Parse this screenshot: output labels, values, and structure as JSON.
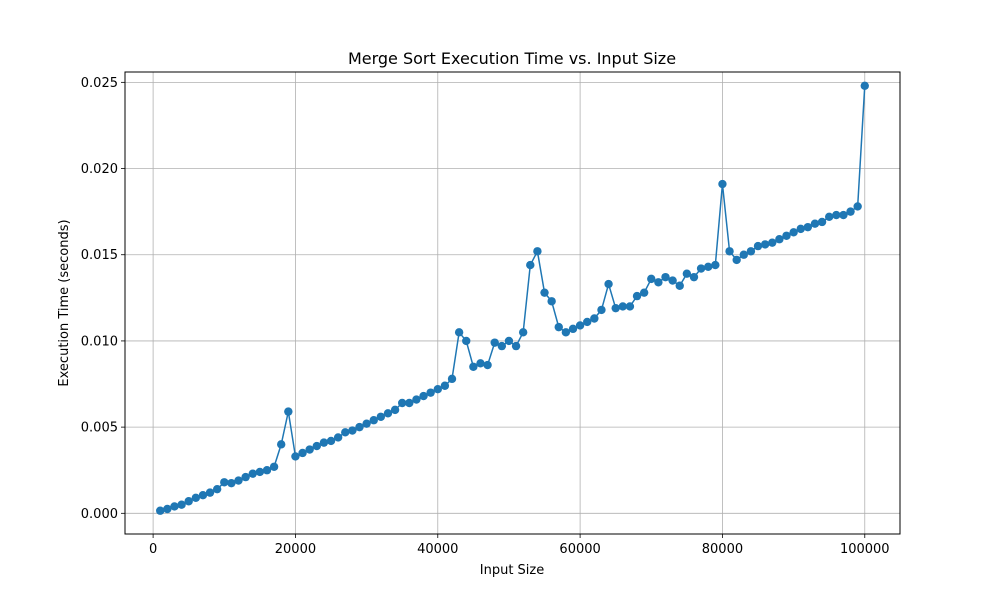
{
  "chart_data": {
    "type": "line",
    "title": "Merge Sort Execution Time vs. Input Size",
    "xlabel": "Input Size",
    "ylabel": "Execution Time (seconds)",
    "xlim": [
      -3950,
      104950
    ],
    "ylim": [
      -0.0012,
      0.0256
    ],
    "xticks": [
      0,
      20000,
      40000,
      60000,
      80000,
      100000
    ],
    "xtick_labels": [
      "0",
      "20000",
      "40000",
      "60000",
      "80000",
      "100000"
    ],
    "yticks": [
      0.0,
      0.005,
      0.01,
      0.015,
      0.02,
      0.025
    ],
    "ytick_labels": [
      "0.000",
      "0.005",
      "0.010",
      "0.015",
      "0.020",
      "0.025"
    ],
    "grid": true,
    "markers": "circle",
    "color": "#1f77b4",
    "series": [
      {
        "x": [
          1000,
          2000,
          3000,
          4000,
          5000,
          6000,
          7000,
          8000,
          9000,
          10000,
          11000,
          12000,
          13000,
          14000,
          15000,
          16000,
          17000,
          18000,
          19000,
          20000,
          21000,
          22000,
          23000,
          24000,
          25000,
          26000,
          27000,
          28000,
          29000,
          30000,
          31000,
          32000,
          33000,
          34000,
          35000,
          36000,
          37000,
          38000,
          39000,
          40000,
          41000,
          42000,
          43000,
          44000,
          45000,
          46000,
          47000,
          48000,
          49000,
          50000,
          51000,
          52000,
          53000,
          54000,
          55000,
          56000,
          57000,
          58000,
          59000,
          60000,
          61000,
          62000,
          63000,
          64000,
          65000,
          66000,
          67000,
          68000,
          69000,
          70000,
          71000,
          72000,
          73000,
          74000,
          75000,
          76000,
          77000,
          78000,
          79000,
          80000,
          81000,
          82000,
          83000,
          84000,
          85000,
          86000,
          87000,
          88000,
          89000,
          90000,
          91000,
          92000,
          93000,
          94000,
          95000,
          96000,
          97000,
          98000,
          99000,
          100000
        ],
        "y": [
          0.00015,
          0.00025,
          0.0004,
          0.0005,
          0.0007,
          0.0009,
          0.00105,
          0.0012,
          0.0014,
          0.0018,
          0.00175,
          0.0019,
          0.0021,
          0.0023,
          0.0024,
          0.0025,
          0.0027,
          0.004,
          0.0059,
          0.0033,
          0.0035,
          0.0037,
          0.0039,
          0.0041,
          0.0042,
          0.0044,
          0.0047,
          0.0048,
          0.005,
          0.0052,
          0.0054,
          0.0056,
          0.0058,
          0.006,
          0.0064,
          0.0064,
          0.0066,
          0.0068,
          0.007,
          0.0072,
          0.0074,
          0.0078,
          0.0105,
          0.01,
          0.0085,
          0.0087,
          0.0086,
          0.0099,
          0.0097,
          0.01,
          0.0097,
          0.0105,
          0.0144,
          0.0152,
          0.0128,
          0.0123,
          0.0108,
          0.0105,
          0.0107,
          0.0109,
          0.0111,
          0.0113,
          0.0118,
          0.0133,
          0.0119,
          0.012,
          0.012,
          0.0126,
          0.0128,
          0.0136,
          0.0134,
          0.0137,
          0.0135,
          0.0132,
          0.0139,
          0.0137,
          0.0142,
          0.0143,
          0.0144,
          0.0191,
          0.0152,
          0.0147,
          0.015,
          0.0152,
          0.0155,
          0.0156,
          0.0157,
          0.0159,
          0.0161,
          0.0163,
          0.0165,
          0.0166,
          0.0168,
          0.0169,
          0.0172,
          0.0173,
          0.0173,
          0.0175,
          0.0178,
          0.0248
        ]
      }
    ]
  }
}
